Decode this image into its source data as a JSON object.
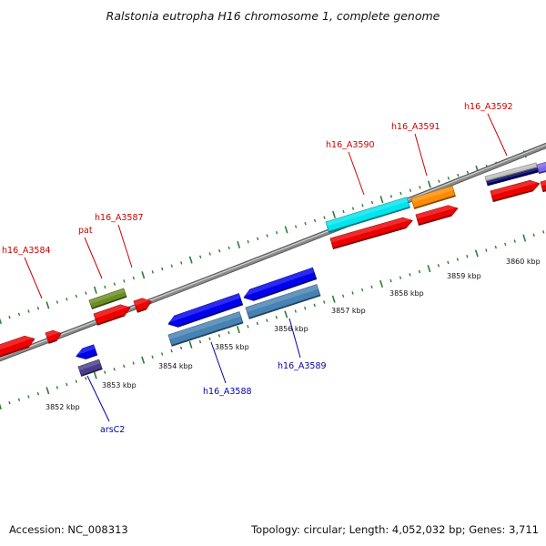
{
  "title": "Ralstonia eutropha H16 chromosome 1, complete genome",
  "accession_text": "Accession: NC_008313",
  "summary_text": "Topology: circular; Length: 4,052,032 bp; Genes: 3,711",
  "colors": {
    "backbone": "#8c8c8c",
    "tick": "#2e7d32",
    "label_forward": "#cc0000",
    "label_reverse": "#0000aa"
  },
  "kbp_labels": [
    "3852 kbp",
    "3853 kbp",
    "3854 kbp",
    "3855 kbp",
    "3856 kbp",
    "3857 kbp",
    "3858 kbp",
    "3859 kbp",
    "3860 kbp"
  ],
  "gene_labels": [
    {
      "text": "h16_A3584",
      "strand": "forward"
    },
    {
      "text": "pat",
      "strand": "forward"
    },
    {
      "text": "h16_A3587",
      "strand": "forward"
    },
    {
      "text": "h16_A3590",
      "strand": "forward"
    },
    {
      "text": "h16_A3591",
      "strand": "forward"
    },
    {
      "text": "h16_A3592",
      "strand": "forward"
    },
    {
      "text": "arsC2",
      "strand": "reverse"
    },
    {
      "text": "h16_A3588",
      "strand": "reverse"
    },
    {
      "text": "h16_A3589",
      "strand": "reverse"
    }
  ],
  "features": [
    {
      "name": "gene-forward",
      "color": "#ee0000"
    },
    {
      "name": "gene-forward",
      "color": "#ee0000"
    },
    {
      "name": "gene-forward",
      "color": "#ee0000"
    },
    {
      "name": "gene-forward",
      "color": "#ee0000"
    },
    {
      "name": "gene-forward",
      "color": "#ee0000"
    },
    {
      "name": "gene-forward",
      "color": "#ee0000"
    },
    {
      "name": "gene-forward",
      "color": "#ee0000"
    },
    {
      "name": "gene-forward",
      "color": "#ee0000"
    },
    {
      "name": "cds-forward",
      "color": "#6b8e23"
    },
    {
      "name": "cds-forward",
      "color": "#00e5ee"
    },
    {
      "name": "cds-forward",
      "color": "#ff8c00"
    },
    {
      "name": "cds-forward",
      "color": "#c0c0c0"
    },
    {
      "name": "cds-forward",
      "color": "#000080"
    },
    {
      "name": "cds-forward",
      "color": "#7b68ee"
    },
    {
      "name": "gene-reverse",
      "color": "#0000ee"
    },
    {
      "name": "gene-reverse",
      "color": "#0000ee"
    },
    {
      "name": "gene-reverse",
      "color": "#0000ee"
    },
    {
      "name": "gene-reverse",
      "color": "#0000ee"
    },
    {
      "name": "cds-reverse",
      "color": "#483d8b"
    },
    {
      "name": "cds-reverse",
      "color": "#4682b4"
    },
    {
      "name": "cds-reverse",
      "color": "#4682b4"
    }
  ]
}
